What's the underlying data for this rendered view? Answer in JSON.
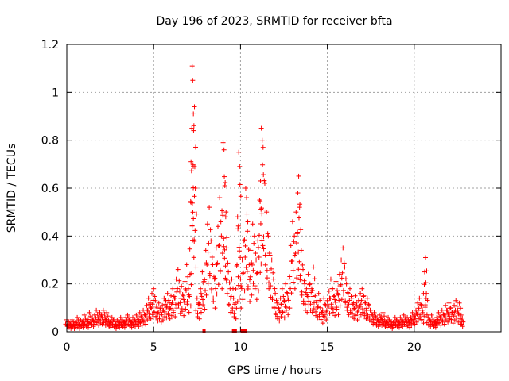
{
  "colors": {
    "series": "#ff0000",
    "grid": "#a0a0a0",
    "axis": "#000000"
  },
  "chart_data": {
    "type": "scatter",
    "title": "Day 196 of 2023, SRMTID for receiver bfta",
    "xlabel": "GPS time / hours",
    "ylabel": "SRMTID / TECUs",
    "xlim": [
      0,
      25
    ],
    "ylim": [
      0,
      1.2
    ],
    "xticks": [
      0,
      5,
      10,
      15,
      20
    ],
    "xtick_labels": [
      "0",
      "5",
      "10",
      "15",
      "20"
    ],
    "yticks": [
      0,
      0.2,
      0.4,
      0.6,
      0.8,
      1.0,
      1.2
    ],
    "ytick_labels": [
      "0",
      "0.2",
      "0.4",
      "0.6",
      "0.8",
      "1",
      "1.2"
    ],
    "grid": true,
    "marker": "+",
    "series": [
      {
        "name": "SRMTID",
        "points": [
          [
            0.0,
            0.05
          ],
          [
            0.1,
            0.04
          ],
          [
            0.2,
            0.03
          ],
          [
            0.3,
            0.05
          ],
          [
            0.4,
            0.03
          ],
          [
            0.5,
            0.04
          ],
          [
            0.6,
            0.06
          ],
          [
            0.7,
            0.03
          ],
          [
            0.8,
            0.05
          ],
          [
            0.9,
            0.04
          ],
          [
            1.0,
            0.07
          ],
          [
            1.1,
            0.05
          ],
          [
            1.2,
            0.04
          ],
          [
            1.3,
            0.08
          ],
          [
            1.4,
            0.06
          ],
          [
            1.5,
            0.05
          ],
          [
            1.6,
            0.07
          ],
          [
            1.7,
            0.09
          ],
          [
            1.8,
            0.06
          ],
          [
            1.9,
            0.08
          ],
          [
            2.0,
            0.07
          ],
          [
            2.1,
            0.09
          ],
          [
            2.2,
            0.06
          ],
          [
            2.3,
            0.08
          ],
          [
            2.4,
            0.05
          ],
          [
            2.5,
            0.04
          ],
          [
            2.6,
            0.06
          ],
          [
            2.7,
            0.05
          ],
          [
            2.8,
            0.03
          ],
          [
            2.9,
            0.05
          ],
          [
            3.0,
            0.04
          ],
          [
            3.1,
            0.06
          ],
          [
            3.2,
            0.05
          ],
          [
            3.3,
            0.04
          ],
          [
            3.4,
            0.06
          ],
          [
            3.5,
            0.07
          ],
          [
            3.6,
            0.05
          ],
          [
            3.7,
            0.04
          ],
          [
            3.8,
            0.06
          ],
          [
            3.9,
            0.05
          ],
          [
            4.0,
            0.07
          ],
          [
            4.1,
            0.05
          ],
          [
            4.2,
            0.08
          ],
          [
            4.3,
            0.06
          ],
          [
            4.4,
            0.09
          ],
          [
            4.5,
            0.07
          ],
          [
            4.6,
            0.11
          ],
          [
            4.7,
            0.14
          ],
          [
            4.8,
            0.12
          ],
          [
            4.9,
            0.16
          ],
          [
            5.0,
            0.18
          ],
          [
            5.1,
            0.13
          ],
          [
            5.2,
            0.1
          ],
          [
            5.3,
            0.12
          ],
          [
            5.4,
            0.09
          ],
          [
            5.5,
            0.11
          ],
          [
            5.6,
            0.14
          ],
          [
            5.7,
            0.13
          ],
          [
            5.8,
            0.16
          ],
          [
            5.9,
            0.12
          ],
          [
            6.0,
            0.15
          ],
          [
            6.1,
            0.18
          ],
          [
            6.2,
            0.14
          ],
          [
            6.3,
            0.22
          ],
          [
            6.4,
            0.26
          ],
          [
            6.5,
            0.17
          ],
          [
            6.6,
            0.19
          ],
          [
            6.7,
            0.15
          ],
          [
            6.8,
            0.21
          ],
          [
            6.9,
            0.28
          ],
          [
            7.0,
            0.18
          ],
          [
            7.1,
            0.24
          ],
          [
            7.15,
            0.54
          ],
          [
            7.2,
            0.85
          ],
          [
            7.22,
            1.11
          ],
          [
            7.25,
            1.05
          ],
          [
            7.28,
            0.69
          ],
          [
            7.3,
            0.84
          ],
          [
            7.35,
            0.94
          ],
          [
            7.4,
            0.6
          ],
          [
            7.5,
            0.14
          ],
          [
            7.6,
            0.12
          ],
          [
            7.7,
            0.18
          ],
          [
            7.8,
            0.25
          ],
          [
            7.9,
            0.21
          ],
          [
            8.0,
            0.34
          ],
          [
            8.1,
            0.45
          ],
          [
            8.2,
            0.52
          ],
          [
            8.3,
            0.38
          ],
          [
            8.4,
            0.28
          ],
          [
            8.5,
            0.22
          ],
          [
            8.6,
            0.35
          ],
          [
            8.7,
            0.44
          ],
          [
            8.8,
            0.56
          ],
          [
            8.9,
            0.4
          ],
          [
            9.0,
            0.79
          ],
          [
            9.05,
            0.76
          ],
          [
            9.1,
            0.61
          ],
          [
            9.15,
            0.48
          ],
          [
            9.2,
            0.35
          ],
          [
            9.3,
            0.25
          ],
          [
            9.4,
            0.18
          ],
          [
            9.5,
            0.22
          ],
          [
            9.6,
            0.14
          ],
          [
            9.7,
            0.12
          ],
          [
            9.8,
            0.28
          ],
          [
            9.85,
            0.43
          ],
          [
            9.9,
            0.75
          ],
          [
            9.95,
            0.69
          ],
          [
            10.0,
            0.22
          ],
          [
            10.1,
            0.3
          ],
          [
            10.2,
            0.38
          ],
          [
            10.3,
            0.6
          ],
          [
            10.35,
            0.56
          ],
          [
            10.4,
            0.42
          ],
          [
            10.5,
            0.28
          ],
          [
            10.6,
            0.34
          ],
          [
            10.7,
            0.45
          ],
          [
            10.8,
            0.4
          ],
          [
            10.9,
            0.3
          ],
          [
            11.0,
            0.38
          ],
          [
            11.1,
            0.55
          ],
          [
            11.15,
            0.63
          ],
          [
            11.2,
            0.85
          ],
          [
            11.25,
            0.8
          ],
          [
            11.3,
            0.77
          ],
          [
            11.4,
            0.62
          ],
          [
            11.5,
            0.5
          ],
          [
            11.6,
            0.4
          ],
          [
            11.7,
            0.32
          ],
          [
            11.8,
            0.3
          ],
          [
            11.9,
            0.22
          ],
          [
            12.0,
            0.16
          ],
          [
            12.1,
            0.12
          ],
          [
            12.2,
            0.1
          ],
          [
            12.3,
            0.14
          ],
          [
            12.4,
            0.18
          ],
          [
            12.5,
            0.13
          ],
          [
            12.6,
            0.2
          ],
          [
            12.7,
            0.16
          ],
          [
            12.8,
            0.22
          ],
          [
            12.9,
            0.36
          ],
          [
            13.0,
            0.46
          ],
          [
            13.1,
            0.4
          ],
          [
            13.2,
            0.5
          ],
          [
            13.3,
            0.58
          ],
          [
            13.35,
            0.65
          ],
          [
            13.4,
            0.52
          ],
          [
            13.5,
            0.34
          ],
          [
            13.6,
            0.26
          ],
          [
            13.7,
            0.2
          ],
          [
            13.8,
            0.18
          ],
          [
            13.9,
            0.24
          ],
          [
            14.0,
            0.2
          ],
          [
            14.1,
            0.18
          ],
          [
            14.2,
            0.27
          ],
          [
            14.3,
            0.15
          ],
          [
            14.4,
            0.13
          ],
          [
            14.5,
            0.16
          ],
          [
            14.6,
            0.1
          ],
          [
            14.7,
            0.08
          ],
          [
            14.8,
            0.14
          ],
          [
            14.9,
            0.11
          ],
          [
            15.0,
            0.13
          ],
          [
            15.1,
            0.17
          ],
          [
            15.2,
            0.22
          ],
          [
            15.3,
            0.18
          ],
          [
            15.4,
            0.15
          ],
          [
            15.5,
            0.21
          ],
          [
            15.6,
            0.16
          ],
          [
            15.7,
            0.24
          ],
          [
            15.8,
            0.3
          ],
          [
            15.9,
            0.35
          ],
          [
            16.0,
            0.27
          ],
          [
            16.1,
            0.2
          ],
          [
            16.2,
            0.16
          ],
          [
            16.3,
            0.18
          ],
          [
            16.4,
            0.14
          ],
          [
            16.5,
            0.12
          ],
          [
            16.6,
            0.15
          ],
          [
            16.7,
            0.11
          ],
          [
            16.8,
            0.13
          ],
          [
            16.9,
            0.16
          ],
          [
            17.0,
            0.18
          ],
          [
            17.1,
            0.15
          ],
          [
            17.2,
            0.12
          ],
          [
            17.3,
            0.14
          ],
          [
            17.4,
            0.11
          ],
          [
            17.5,
            0.09
          ],
          [
            17.6,
            0.07
          ],
          [
            17.7,
            0.08
          ],
          [
            17.8,
            0.06
          ],
          [
            17.9,
            0.05
          ],
          [
            18.0,
            0.07
          ],
          [
            18.1,
            0.06
          ],
          [
            18.2,
            0.08
          ],
          [
            18.3,
            0.05
          ],
          [
            18.4,
            0.04
          ],
          [
            18.5,
            0.06
          ],
          [
            18.6,
            0.05
          ],
          [
            18.7,
            0.03
          ],
          [
            18.8,
            0.04
          ],
          [
            18.9,
            0.06
          ],
          [
            19.0,
            0.05
          ],
          [
            19.1,
            0.04
          ],
          [
            19.2,
            0.06
          ],
          [
            19.3,
            0.05
          ],
          [
            19.4,
            0.07
          ],
          [
            19.5,
            0.05
          ],
          [
            19.6,
            0.06
          ],
          [
            19.7,
            0.04
          ],
          [
            19.8,
            0.06
          ],
          [
            19.9,
            0.08
          ],
          [
            20.0,
            0.07
          ],
          [
            20.1,
            0.09
          ],
          [
            20.2,
            0.12
          ],
          [
            20.3,
            0.14
          ],
          [
            20.4,
            0.11
          ],
          [
            20.5,
            0.08
          ],
          [
            20.6,
            0.25
          ],
          [
            20.65,
            0.31
          ],
          [
            20.7,
            0.16
          ],
          [
            20.8,
            0.06
          ],
          [
            20.9,
            0.05
          ],
          [
            21.0,
            0.07
          ],
          [
            21.1,
            0.05
          ],
          [
            21.2,
            0.04
          ],
          [
            21.3,
            0.06
          ],
          [
            21.4,
            0.08
          ],
          [
            21.5,
            0.06
          ],
          [
            21.6,
            0.09
          ],
          [
            21.7,
            0.07
          ],
          [
            21.8,
            0.11
          ],
          [
            21.9,
            0.09
          ],
          [
            22.0,
            0.12
          ],
          [
            22.1,
            0.1
          ],
          [
            22.2,
            0.08
          ],
          [
            22.3,
            0.11
          ],
          [
            22.4,
            0.13
          ],
          [
            22.5,
            0.09
          ],
          [
            22.6,
            0.12
          ],
          [
            22.7,
            0.07
          ],
          [
            22.75,
            0.05
          ]
        ]
      }
    ],
    "zero_markers": [
      7.9,
      9.6,
      9.7,
      10.1,
      10.2,
      10.3
    ]
  }
}
